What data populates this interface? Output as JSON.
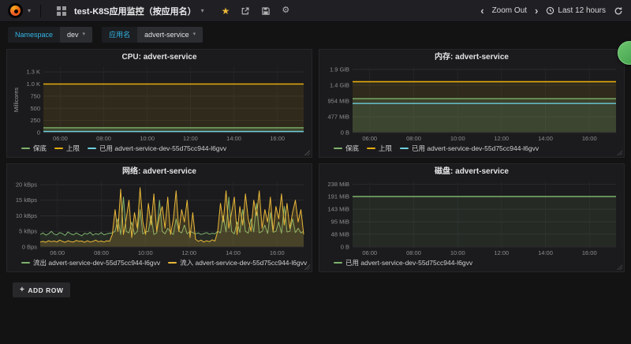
{
  "nav": {
    "dashboard_title": "test-K8S应用监控（按应用名）",
    "zoom_out_label": "Zoom Out",
    "time_range_label": "Last 12 hours"
  },
  "variables": [
    {
      "label": "Namespace",
      "value": "dev"
    },
    {
      "label": "应用名",
      "value": "advert-service"
    }
  ],
  "add_row_label": "ADD ROW",
  "colors": {
    "green": "#7eb26d",
    "yellow_limit": "#e5ac0e",
    "yellow_traffic": "#eab839",
    "cyan": "#6ed0e0",
    "variable_label": "#33b5e5",
    "star": "#eab839",
    "badge_green": "#4caf50"
  },
  "chart_data": [
    {
      "type": "line",
      "title": "CPU: advert-service",
      "ylabel": "Millicores",
      "ylim": [
        0,
        1350
      ],
      "grid": true,
      "legend_position": "bottom",
      "x_range": "last 12 hours (~05:13 - 17:13)",
      "yticks": [
        {
          "v": 0,
          "label": "0"
        },
        {
          "v": 250,
          "label": "250"
        },
        {
          "v": 500,
          "label": "500"
        },
        {
          "v": 750,
          "label": "750"
        },
        {
          "v": 1000,
          "label": "1.0 K"
        },
        {
          "v": 1250,
          "label": "1.3 K"
        }
      ],
      "xticks": [
        "06:00",
        "08:00",
        "10:00",
        "12:00",
        "14:00",
        "16:00"
      ],
      "xtick_pos": [
        0.065,
        0.232,
        0.399,
        0.565,
        0.732,
        0.899
      ],
      "series": [
        {
          "name": "上限",
          "color": "#e5ac0e",
          "const": 1000,
          "fill": 0.1,
          "width": 1.6
        },
        {
          "name": "保底",
          "color": "#7eb26d",
          "const": 100,
          "fill": 0.2,
          "width": 1.4
        },
        {
          "name": "已用 advert-service-dev-55d75cc944-l6gvv",
          "color": "#6ed0e0",
          "const": 22,
          "fill": 0.18,
          "width": 1.4
        }
      ],
      "legend": [
        {
          "label": "保底",
          "color": "#7eb26d"
        },
        {
          "label": "上限",
          "color": "#e5ac0e"
        },
        {
          "label": "已用 advert-service-dev-55d75cc944-l6gvv",
          "color": "#6ed0e0"
        }
      ]
    },
    {
      "type": "line",
      "title": "内存: advert-service",
      "ylabel": "",
      "ylim": [
        0,
        1980
      ],
      "grid": true,
      "legend_position": "bottom",
      "x_range": "last 12 hours (~05:13 - 17:13)",
      "yticks": [
        {
          "v": 0,
          "label": "0 B"
        },
        {
          "v": 477,
          "label": "477 MiB"
        },
        {
          "v": 954,
          "label": "954 MiB"
        },
        {
          "v": 1431,
          "label": "1.4 GiB"
        },
        {
          "v": 1908,
          "label": "1.9 GiB"
        }
      ],
      "xticks": [
        "06:00",
        "08:00",
        "10:00",
        "12:00",
        "14:00",
        "16:00"
      ],
      "xtick_pos": [
        0.065,
        0.232,
        0.399,
        0.565,
        0.732,
        0.899
      ],
      "series": [
        {
          "name": "上限",
          "color": "#e5ac0e",
          "const": 1536,
          "fill": 0.1,
          "width": 1.6
        },
        {
          "name": "保底",
          "color": "#7eb26d",
          "const": 1024,
          "fill": 0.14,
          "width": 1.4
        },
        {
          "name": "已用 advert-service-dev-55d75cc944-l6gvv",
          "color": "#6ed0e0",
          "const": 880,
          "fill": 0.06,
          "width": 1.4
        }
      ],
      "legend": [
        {
          "label": "保底",
          "color": "#7eb26d"
        },
        {
          "label": "上限",
          "color": "#e5ac0e"
        },
        {
          "label": "已用 advert-service-dev-55d75cc944-l6gvv",
          "color": "#6ed0e0"
        }
      ]
    },
    {
      "type": "line",
      "title": "网络: advert-service",
      "ylabel": "",
      "ylim": [
        0,
        21
      ],
      "grid": true,
      "legend_position": "bottom",
      "x_range": "last 12 hours (~05:13 - 17:13)",
      "unit": "kBps",
      "yticks": [
        {
          "v": 0,
          "label": "0 Bps"
        },
        {
          "v": 5,
          "label": "5 kBps"
        },
        {
          "v": 10,
          "label": "10 kBps"
        },
        {
          "v": 15,
          "label": "15 kBps"
        },
        {
          "v": 20,
          "label": "20 kBps"
        }
      ],
      "xticks": [
        "06:00",
        "08:00",
        "10:00",
        "12:00",
        "14:00",
        "16:00"
      ],
      "xtick_pos": [
        0.065,
        0.232,
        0.399,
        0.565,
        0.732,
        0.899
      ],
      "series": [
        {
          "name": "流出 advert-service-dev-55d75cc944-l6gvv",
          "color": "#7eb26d",
          "fill": 0.1,
          "width": 1,
          "points": [
            4.0,
            4.5,
            3.8,
            4.2,
            5.0,
            4.1,
            3.9,
            4.6,
            4.3,
            3.7,
            4.8,
            4.2,
            3.9,
            4.5,
            4.0,
            3.6,
            4.4,
            4.1,
            4.7,
            3.8,
            4.3,
            4.0,
            4.6,
            3.9,
            4.2,
            4.4,
            4.5,
            5.0,
            9.0,
            4.0,
            16.0,
            5.0,
            4.5,
            8.0,
            4.0,
            5.0,
            12.0,
            4.2,
            4.8,
            5.0,
            10.0,
            4.0,
            4.5,
            15.0,
            5.0,
            4.2,
            6.0,
            4.8,
            4.0,
            9.0,
            5.0,
            4.5,
            7.0,
            4.2,
            5.0,
            4.6,
            4.2,
            4.5,
            4.0,
            4.3,
            4.6,
            4.1,
            4.4,
            4.2,
            5.0,
            4.5,
            10.0,
            4.8,
            16.0,
            5.0,
            4.2,
            8.0,
            4.6,
            12.0,
            5.0,
            4.4,
            9.0,
            4.8,
            14.0,
            4.5,
            5.0,
            7.0,
            4.3,
            11.0,
            4.7,
            5.0,
            8.0,
            4.4,
            13.0,
            4.8,
            5.0,
            9.0,
            4.6,
            6.0,
            4.5,
            5.0
          ]
        },
        {
          "name": "流入 advert-service-dev-55d75cc944-l6gvv",
          "color": "#eab839",
          "fill": 0.18,
          "width": 1,
          "points": [
            1.6,
            1.8,
            1.5,
            2.0,
            1.7,
            1.9,
            1.6,
            2.2,
            1.8,
            1.5,
            2.0,
            1.7,
            1.6,
            2.1,
            1.8,
            1.9,
            1.5,
            2.0,
            1.6,
            1.8,
            2.2,
            1.7,
            1.9,
            1.6,
            2.0,
            1.8,
            4,
            12,
            5,
            18.5,
            4,
            9,
            15,
            3,
            11,
            6,
            19,
            8,
            4,
            14,
            7,
            17,
            5,
            10,
            13,
            6,
            16,
            4,
            9,
            18,
            5,
            12,
            8,
            15,
            3,
            11,
            2.5,
            1.8,
            2.2,
            1.6,
            2.0,
            1.7,
            2.3,
            1.9,
            5,
            14,
            8,
            18,
            6,
            11,
            16,
            4,
            13,
            7,
            17,
            9,
            5,
            15,
            10,
            18,
            6,
            12,
            8,
            16,
            5,
            13,
            9,
            17,
            7,
            14,
            6,
            11,
            15,
            8,
            12,
            4
          ]
        }
      ],
      "legend": [
        {
          "label": "流出 advert-service-dev-55d75cc944-l6gvv",
          "color": "#7eb26d"
        },
        {
          "label": "流入 advert-service-dev-55d75cc944-l6gvv",
          "color": "#eab839"
        }
      ]
    },
    {
      "type": "line",
      "title": "磁盘: advert-service",
      "ylabel": "",
      "ylim": [
        0,
        248
      ],
      "grid": true,
      "legend_position": "bottom",
      "x_range": "last 12 hours (~05:13 - 17:13)",
      "yticks": [
        {
          "v": 0,
          "label": "0 B"
        },
        {
          "v": 48,
          "label": "48 MiB"
        },
        {
          "v": 95,
          "label": "95 MiB"
        },
        {
          "v": 143,
          "label": "143 MiB"
        },
        {
          "v": 191,
          "label": "191 MiB"
        },
        {
          "v": 238,
          "label": "238 MiB"
        }
      ],
      "xticks": [
        "06:00",
        "08:00",
        "10:00",
        "12:00",
        "14:00",
        "16:00"
      ],
      "xtick_pos": [
        0.065,
        0.232,
        0.399,
        0.565,
        0.732,
        0.899
      ],
      "series": [
        {
          "name": "已用 advert-service-dev-55d75cc944-l6gvv",
          "color": "#7eb26d",
          "const": 191,
          "fill": 0.1,
          "width": 1.5
        }
      ],
      "legend": [
        {
          "label": "已用 advert-service-dev-55d75cc944-l6gvv",
          "color": "#7eb26d"
        }
      ]
    }
  ]
}
